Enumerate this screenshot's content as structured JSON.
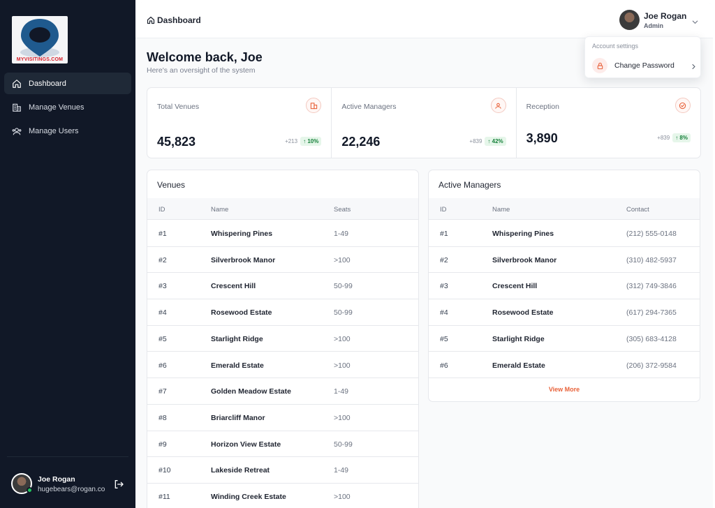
{
  "sidebar": {
    "logo_text": "MYVISITINGS.COM",
    "nav": [
      {
        "label": "Dashboard",
        "icon": "home-icon",
        "active": true
      },
      {
        "label": "Manage Venues",
        "icon": "building-icon",
        "active": false
      },
      {
        "label": "Manage Users",
        "icon": "users-icon",
        "active": false
      }
    ],
    "profile": {
      "name": "Joe Rogan",
      "email": "hugebears@rogan.co",
      "icon": "logout-icon"
    }
  },
  "header": {
    "breadcrumb": "Dashboard",
    "user": {
      "name": "Joe Rogan",
      "role": "Admin"
    }
  },
  "dropdown": {
    "title": "Account settings",
    "item": "Change Password"
  },
  "welcome": {
    "title": "Welcome back, Joe",
    "subtitle": "Here's an oversight of the system"
  },
  "stats": [
    {
      "label": "Total Venues",
      "value": "45,823",
      "delta": "+213",
      "percent": "↑ 10%",
      "icon": "building-icon"
    },
    {
      "label": "Active Managers",
      "value": "22,246",
      "delta": "+839",
      "percent": "↑ 42%",
      "icon": "users-icon"
    },
    {
      "label": "Reception",
      "value": "3,890",
      "delta": "+839",
      "percent": "↑ 8%",
      "icon": "check-circle-icon"
    }
  ],
  "venues": {
    "title": "Venues",
    "columns": [
      "ID",
      "Name",
      "Seats"
    ],
    "rows": [
      [
        "#1",
        "Whispering Pines",
        "1-49"
      ],
      [
        "#2",
        "Silverbrook Manor",
        ">100"
      ],
      [
        "#3",
        "Crescent Hill",
        "50-99"
      ],
      [
        "#4",
        "Rosewood Estate",
        "50-99"
      ],
      [
        "#5",
        "Starlight Ridge",
        ">100"
      ],
      [
        "#6",
        "Emerald Estate",
        ">100"
      ],
      [
        "#7",
        "Golden Meadow Estate",
        "1-49"
      ],
      [
        "#8",
        "Briarcliff Manor",
        ">100"
      ],
      [
        "#9",
        "Horizon View Estate",
        "50-99"
      ],
      [
        "#10",
        "Lakeside Retreat",
        "1-49"
      ],
      [
        "#11",
        "Winding Creek Estate",
        ">100"
      ]
    ]
  },
  "managers": {
    "title": "Active Managers",
    "columns": [
      "ID",
      "Name",
      "Contact"
    ],
    "rows": [
      [
        "#1",
        "Whispering Pines",
        "(212) 555-0148"
      ],
      [
        "#2",
        "Silverbrook Manor",
        "(310) 482-5937"
      ],
      [
        "#3",
        "Crescent Hill",
        "(312) 749-3846"
      ],
      [
        "#4",
        "Rosewood Estate",
        "(617) 294-7365"
      ],
      [
        "#5",
        "Starlight Ridge",
        "(305) 683-4128"
      ],
      [
        "#6",
        "Emerald Estate",
        "(206) 372-9584"
      ]
    ],
    "view_more": "View More"
  },
  "colors": {
    "sidebar": "#111827",
    "accent": "#e8623a",
    "positive": "#16803a"
  }
}
